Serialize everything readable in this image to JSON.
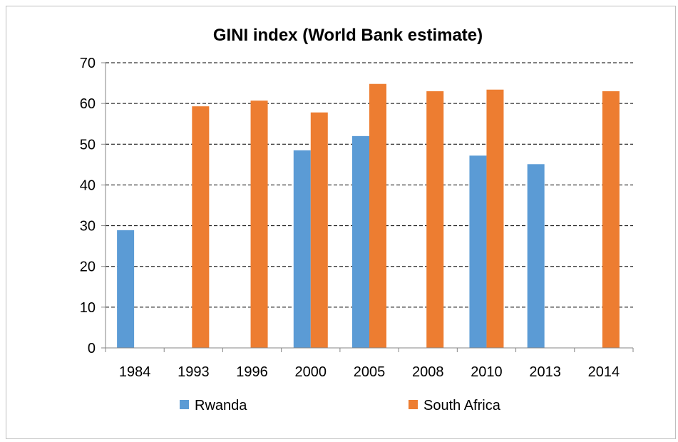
{
  "chart_data": {
    "type": "bar",
    "title": "GINI index (World Bank estimate)",
    "xlabel": "",
    "ylabel": "",
    "ylim": [
      0,
      70
    ],
    "yticks": [
      "0",
      "10",
      "20",
      "30",
      "40",
      "50",
      "60",
      "70"
    ],
    "categories": [
      "1984",
      "1993",
      "1996",
      "2000",
      "2005",
      "2008",
      "2010",
      "2013",
      "2014"
    ],
    "series": [
      {
        "name": "Rwanda",
        "color": "#5b9bd5",
        "values": [
          28.9,
          null,
          null,
          48.5,
          52.0,
          null,
          47.2,
          45.1,
          null
        ]
      },
      {
        "name": "South Africa",
        "color": "#ed7d31",
        "values": [
          null,
          59.3,
          60.7,
          57.8,
          64.8,
          63.0,
          63.4,
          null,
          63.0
        ]
      }
    ],
    "grid": "dashed-horizontal",
    "legend_position": "bottom"
  }
}
